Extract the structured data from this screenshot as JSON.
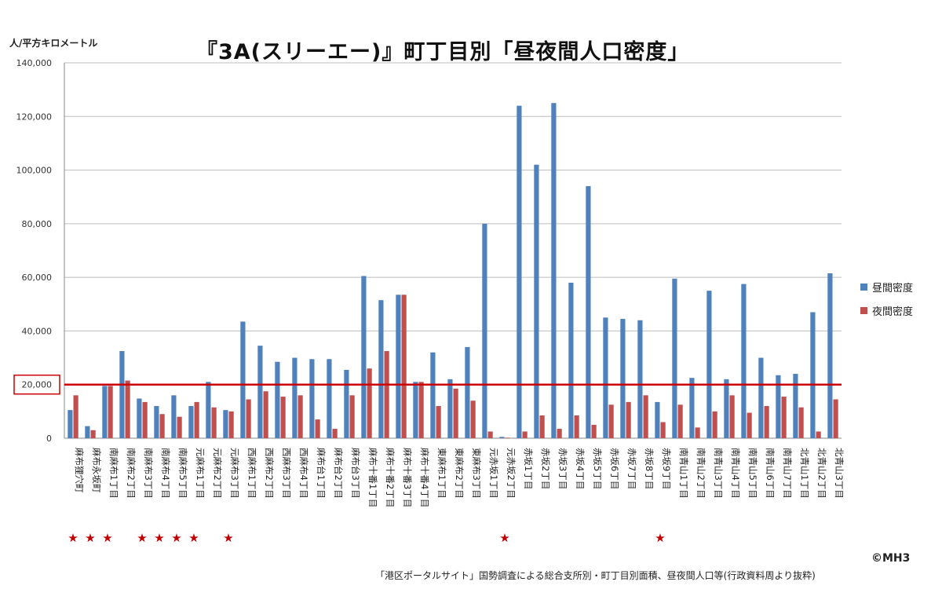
{
  "chart_data": {
    "type": "bar",
    "title": "『3A(スリーエー)』町丁目別「昼夜間人口密度」",
    "ylabel": "人/平方キロメートル",
    "ylim": [
      0,
      140000
    ],
    "yticks": [
      "0",
      "20,000",
      "40,000",
      "60,000",
      "80,000",
      "100,000",
      "120,000",
      "140,000"
    ],
    "yticks_values": [
      0,
      20000,
      40000,
      60000,
      80000,
      100000,
      120000,
      140000
    ],
    "grid": true,
    "legend_position": "right",
    "reference_line": {
      "value": 20000,
      "color": "#cc0000"
    },
    "categories": [
      "麻布狸穴町",
      "麻布永坂町",
      "南麻布1丁目",
      "南麻布2丁目",
      "南麻布3丁目",
      "南麻布4丁目",
      "南麻布5丁目",
      "元麻布1丁目",
      "元麻布2丁目",
      "元麻布3丁目",
      "西麻布1丁目",
      "西麻布2丁目",
      "西麻布3丁目",
      "西麻布4丁目",
      "麻布台1丁目",
      "麻布台2丁目",
      "麻布台3丁目",
      "麻布十番1丁目",
      "麻布十番2丁目",
      "麻布十番3丁目",
      "麻布十番4丁目",
      "東麻布1丁目",
      "東麻布2丁目",
      "東麻布3丁目",
      "元赤坂1丁目",
      "元赤坂2丁目",
      "赤坂1丁目",
      "赤坂2丁目",
      "赤坂3丁目",
      "赤坂4丁目",
      "赤坂5丁目",
      "赤坂6丁目",
      "赤坂7丁目",
      "赤坂8丁目",
      "赤坂9丁目",
      "南青山1丁目",
      "南青山2丁目",
      "南青山3丁目",
      "南青山4丁目",
      "南青山5丁目",
      "南青山6丁目",
      "南青山7丁目",
      "北青山1丁目",
      "北青山2丁目",
      "北青山3丁目"
    ],
    "series": [
      {
        "name": "昼間密度",
        "color": "#4f81bd",
        "values": [
          10500,
          4500,
          19500,
          32500,
          14800,
          12000,
          16000,
          12000,
          21000,
          10500,
          43500,
          34500,
          28500,
          30000,
          29500,
          29500,
          25500,
          60500,
          51500,
          53500,
          21000,
          32000,
          22000,
          34000,
          80000,
          500,
          124000,
          102000,
          125000,
          58000,
          94000,
          45000,
          44500,
          44000,
          13500,
          59500,
          22500,
          55000,
          22000,
          57500,
          30000,
          23500,
          24000,
          47000,
          61500
        ]
      },
      {
        "name": "夜間密度",
        "color": "#c0504d",
        "values": [
          16000,
          3000,
          19500,
          21500,
          13500,
          9000,
          8000,
          13500,
          11500,
          10000,
          14500,
          17500,
          15500,
          16000,
          7000,
          3500,
          16000,
          26000,
          32500,
          53500,
          21000,
          12000,
          18500,
          14000,
          2500,
          200,
          2500,
          8500,
          3500,
          8500,
          5000,
          12500,
          13500,
          16000,
          6000,
          12500,
          4000,
          10000,
          16000,
          9500,
          12000,
          15500,
          11500,
          2500,
          14500
        ]
      }
    ],
    "starred": [
      true,
      true,
      true,
      false,
      true,
      true,
      true,
      true,
      false,
      true,
      false,
      false,
      false,
      false,
      false,
      false,
      false,
      false,
      false,
      false,
      false,
      false,
      false,
      false,
      false,
      true,
      false,
      false,
      false,
      false,
      false,
      false,
      false,
      false,
      true,
      false,
      false,
      false,
      false,
      false,
      false,
      false,
      false,
      false,
      false
    ],
    "star_symbol": "★"
  },
  "copyright": "©MH3",
  "source": "「港区ポータルサイト」国勢調査による総合支所別・町丁目別面積、昼夜間人口等(行政資料周より抜粋)"
}
